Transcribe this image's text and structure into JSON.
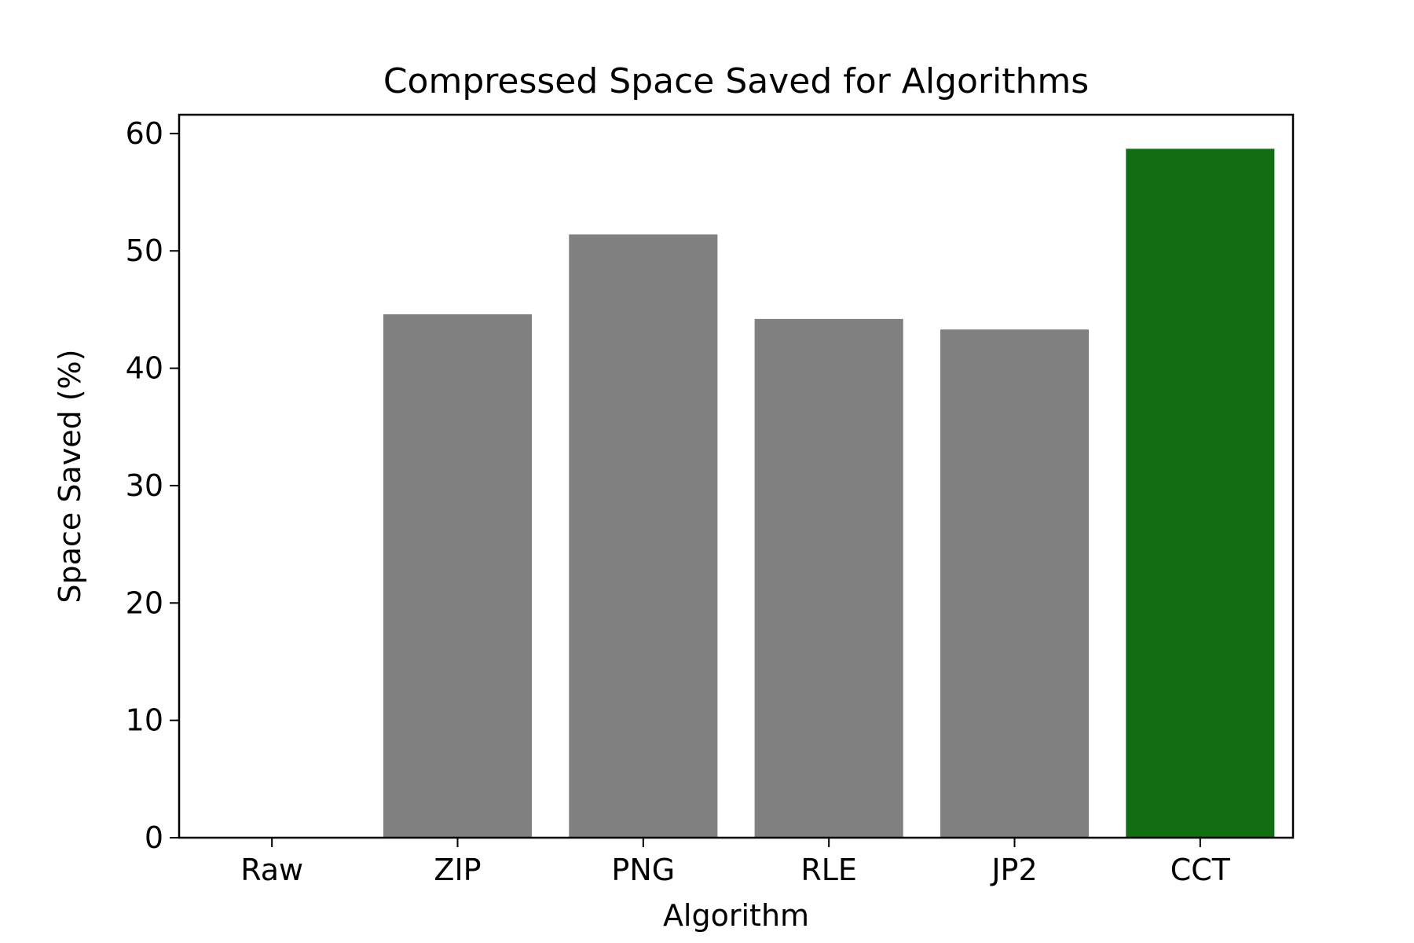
{
  "chart_data": {
    "type": "bar",
    "title": "Compressed Space Saved for Algorithms",
    "xlabel": "Algorithm",
    "ylabel": "Space Saved (%)",
    "categories": [
      "Raw",
      "ZIP",
      "PNG",
      "RLE",
      "JP2",
      "CCT"
    ],
    "values": [
      0,
      44.6,
      51.4,
      44.2,
      43.3,
      58.7
    ],
    "bar_colors": [
      "#808080",
      "#808080",
      "#808080",
      "#808080",
      "#808080",
      "#126e12"
    ],
    "ylim": [
      0,
      61.6
    ],
    "yticks": [
      0,
      10,
      20,
      30,
      40,
      50,
      60
    ],
    "grid": false,
    "legend": false
  }
}
